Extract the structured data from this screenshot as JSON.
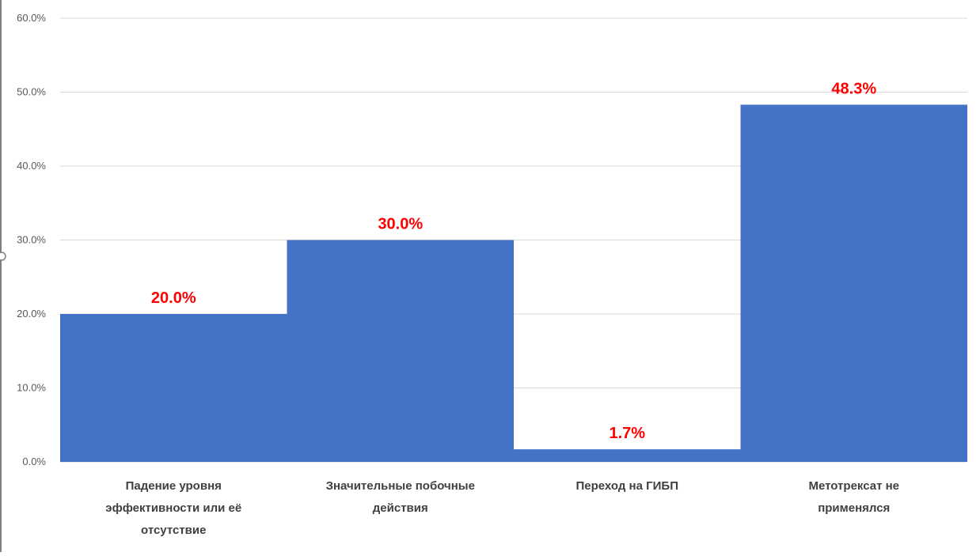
{
  "chart_data": {
    "type": "bar",
    "categories": [
      [
        "Падение уровня",
        "эффективности или её",
        "отсутствие"
      ],
      [
        "Значительные побочные",
        "действия"
      ],
      [
        "Переход на ГИБП"
      ],
      [
        "Метотрексат не",
        "применялся"
      ]
    ],
    "values": [
      20.0,
      30.0,
      1.7,
      48.3
    ],
    "data_labels": [
      "20.0%",
      "30.0%",
      "1.7%",
      "48.3%"
    ],
    "ylim": [
      0,
      60
    ],
    "yticks": [
      0,
      10,
      20,
      30,
      40,
      50,
      60
    ],
    "ytick_labels": [
      "0.0%",
      "10.0%",
      "20.0%",
      "30.0%",
      "40.0%",
      "50.0%",
      "60.0%"
    ],
    "grid": true,
    "colors": {
      "bar": "#4472c4",
      "data_label": "#ff0000",
      "grid": "#d9d9d9",
      "axis": "#d9d9d9"
    },
    "title": "",
    "xlabel": "",
    "ylabel": ""
  }
}
